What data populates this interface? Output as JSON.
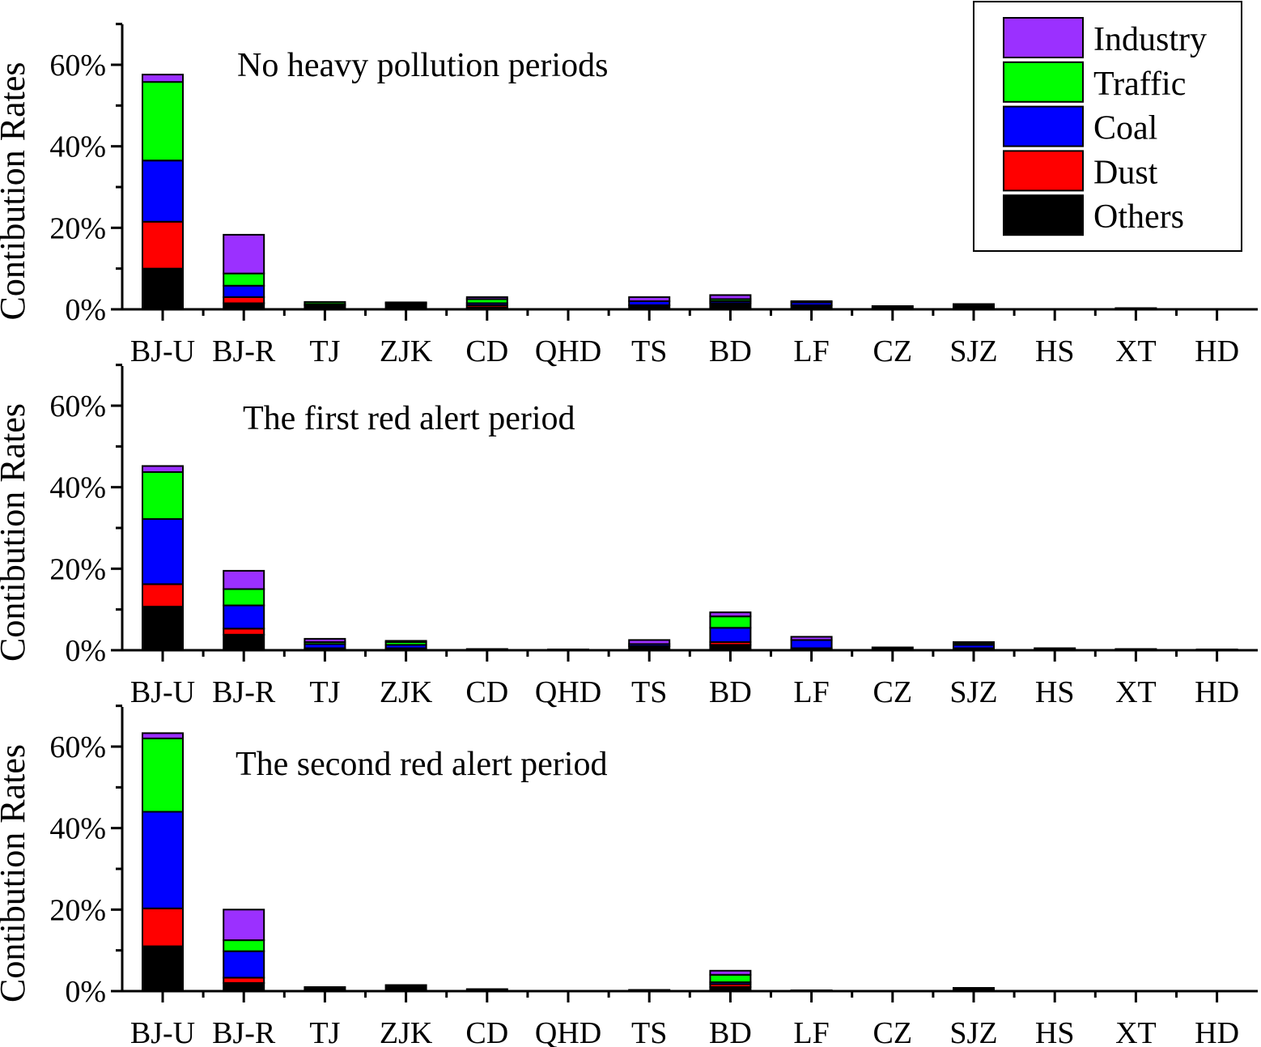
{
  "chart_data": {
    "type": "bar",
    "stacked": true,
    "ylabel": "Contibution Rates",
    "ylim": [
      0,
      70
    ],
    "yticks": [
      "0%",
      "20%",
      "40%",
      "60%"
    ],
    "yticks_values": [
      0,
      20,
      40,
      60
    ],
    "categories": [
      "BJ-U",
      "BJ-R",
      "TJ",
      "ZJK",
      "CD",
      "QHD",
      "TS",
      "BD",
      "LF",
      "CZ",
      "SJZ",
      "HS",
      "XT",
      "HD"
    ],
    "legend": {
      "position": "top-right",
      "entries": [
        {
          "name": "Industry",
          "color": "#9b30ff"
        },
        {
          "name": "Traffic",
          "color": "#00ff00"
        },
        {
          "name": "Coal",
          "color": "#0000ff"
        },
        {
          "name": "Dust",
          "color": "#ff0000"
        },
        {
          "name": "Others",
          "color": "#000000"
        }
      ]
    },
    "panels": [
      {
        "title": "No heavy pollution periods",
        "series": [
          {
            "name": "Others",
            "values": [
              10,
              1.5,
              1,
              1.5,
              0.5,
              0,
              1,
              1.5,
              1,
              0.8,
              1,
              0,
              0.3,
              0
            ]
          },
          {
            "name": "Dust",
            "values": [
              11.5,
              1.5,
              0,
              0,
              0.5,
              0,
              0,
              0,
              0,
              0,
              0,
              0,
              0,
              0
            ]
          },
          {
            "name": "Coal",
            "values": [
              15,
              2.8,
              0.3,
              0.2,
              0.5,
              0,
              1,
              0.5,
              0.7,
              0,
              0.3,
              0,
              0,
              0
            ]
          },
          {
            "name": "Traffic",
            "values": [
              19.3,
              3,
              0.5,
              0,
              1,
              0,
              0,
              0.5,
              0,
              0,
              0,
              0,
              0,
              0
            ]
          },
          {
            "name": "Industry",
            "values": [
              1.8,
              9.5,
              0,
              0,
              0.5,
              0,
              1,
              1,
              0.3,
              0,
              0,
              0,
              0,
              0
            ]
          }
        ]
      },
      {
        "title": "The first red alert period",
        "series": [
          {
            "name": "Others",
            "values": [
              10.7,
              3.8,
              0.5,
              0.5,
              0.3,
              0.2,
              1,
              1.3,
              0.5,
              0.7,
              0.5,
              0.5,
              0.3,
              0.2
            ]
          },
          {
            "name": "Dust",
            "values": [
              5.5,
              1.5,
              0,
              0,
              0,
              0,
              0,
              0.7,
              0,
              0,
              0,
              0,
              0,
              0
            ]
          },
          {
            "name": "Coal",
            "values": [
              16,
              5.7,
              1,
              0.8,
              0,
              0,
              0.5,
              3.5,
              2,
              0,
              0.8,
              0,
              0,
              0
            ]
          },
          {
            "name": "Traffic",
            "values": [
              11.5,
              4,
              0.5,
              0.7,
              0,
              0,
              0,
              2.8,
              0,
              0,
              0.5,
              0,
              0,
              0
            ]
          },
          {
            "name": "Industry",
            "values": [
              1.5,
              4.5,
              0.8,
              0.3,
              0,
              0,
              1,
              1,
              0.8,
              0,
              0.2,
              0,
              0,
              0
            ]
          }
        ]
      },
      {
        "title": "The second red alert period",
        "series": [
          {
            "name": "Others",
            "values": [
              11,
              2,
              1,
              1.5,
              0.5,
              0,
              0.3,
              1,
              0.2,
              0,
              0.8,
              0,
              0,
              0
            ]
          },
          {
            "name": "Dust",
            "values": [
              9.3,
              1.3,
              0,
              0,
              0,
              0,
              0,
              0.7,
              0,
              0,
              0,
              0,
              0,
              0
            ]
          },
          {
            "name": "Coal",
            "values": [
              23.7,
              6.5,
              0,
              0,
              0,
              0,
              0,
              0.5,
              0,
              0,
              0,
              0,
              0,
              0
            ]
          },
          {
            "name": "Traffic",
            "values": [
              18,
              2.7,
              0,
              0,
              0,
              0,
              0,
              1.8,
              0,
              0,
              0,
              0,
              0,
              0
            ]
          },
          {
            "name": "Industry",
            "values": [
              1.3,
              7.5,
              0,
              0,
              0,
              0,
              0,
              1,
              0,
              0,
              0,
              0,
              0,
              0
            ]
          }
        ]
      }
    ]
  }
}
